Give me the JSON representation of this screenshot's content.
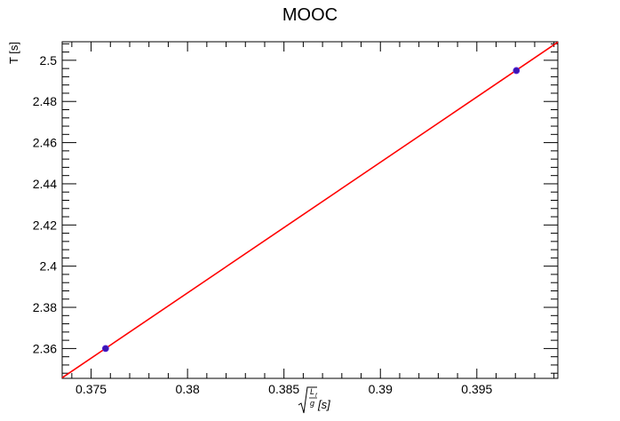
{
  "chart_data": {
    "type": "scatter",
    "title": "MOOC",
    "ylabel": "T [s]",
    "xlabel_parts": {
      "numerator": "L",
      "numerator_sub": "f",
      "denominator": "g",
      "unit": "[s]"
    },
    "xlim": [
      0.3735,
      0.3992
    ],
    "ylim": [
      2.3455,
      2.509
    ],
    "x_ticks": [
      0.375,
      0.38,
      0.385,
      0.39,
      0.395
    ],
    "x_tick_labels": [
      "0.375",
      "0.38",
      "0.385",
      "0.39",
      "0.395"
    ],
    "y_ticks": [
      2.36,
      2.38,
      2.4,
      2.42,
      2.44,
      2.46,
      2.48,
      2.5
    ],
    "y_tick_labels": [
      "2.36",
      "2.38",
      "2.4",
      "2.42",
      "2.44",
      "2.46",
      "2.48",
      "2.5"
    ],
    "series": [
      {
        "x": [
          0.37575,
          0.39705
        ],
        "y": [
          2.36,
          2.495
        ]
      }
    ],
    "fit_line": {
      "x": [
        0.3735,
        0.3992
      ],
      "y": [
        2.3458,
        2.5088
      ]
    },
    "colors": {
      "points": "#3a14b4",
      "fit": "#ff0000",
      "axes": "#000000"
    }
  }
}
